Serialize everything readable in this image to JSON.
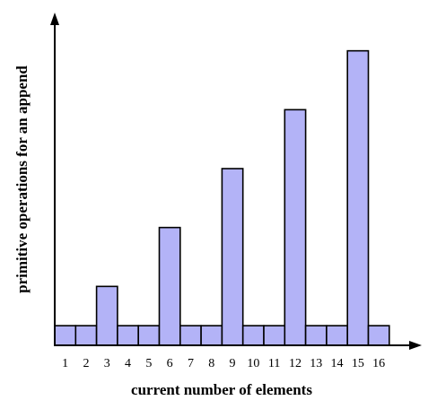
{
  "chart_data": {
    "type": "bar",
    "categories": [
      "1",
      "2",
      "3",
      "4",
      "5",
      "6",
      "7",
      "8",
      "9",
      "10",
      "11",
      "12",
      "13",
      "14",
      "15",
      "16"
    ],
    "values": [
      1,
      1,
      3,
      1,
      1,
      6,
      1,
      1,
      9,
      1,
      1,
      12,
      1,
      1,
      15,
      1
    ],
    "xlabel": "current number of elements",
    "ylabel": "primitive operations for an append",
    "ylim": [
      0,
      16.4
    ],
    "grid": false,
    "legend": "none",
    "colors": {
      "bar_fill": "#b3b3f7",
      "bar_stroke": "#000000",
      "axis": "#000000"
    }
  }
}
